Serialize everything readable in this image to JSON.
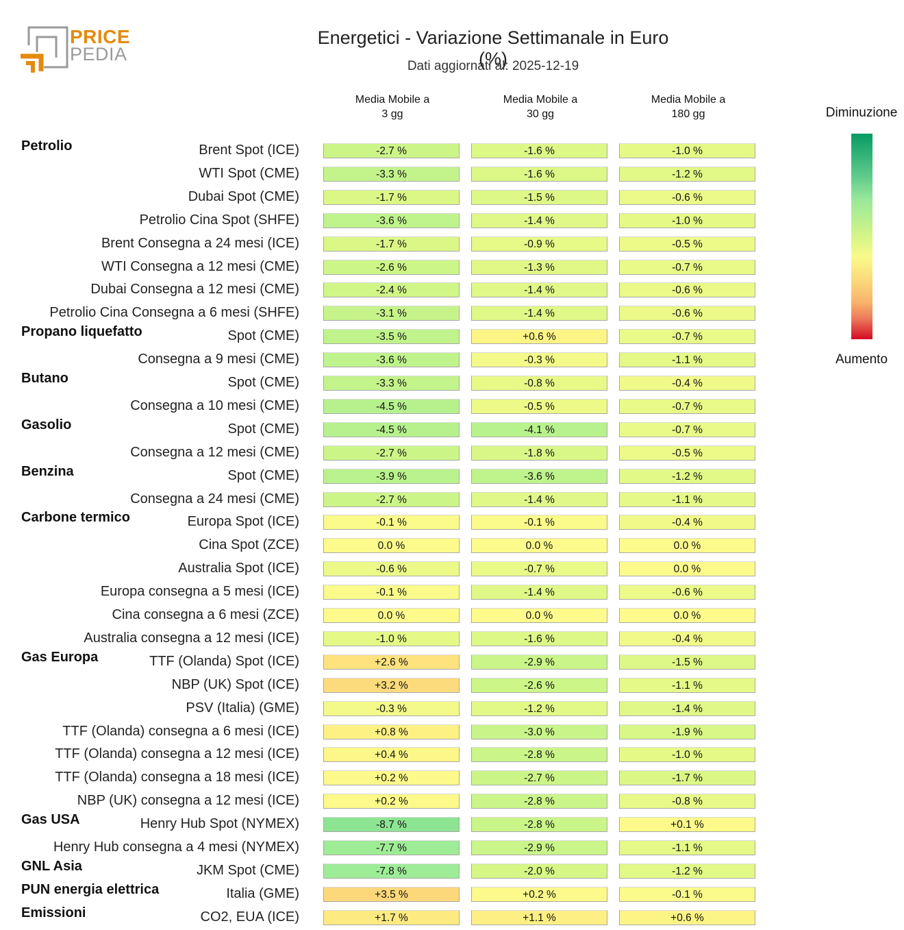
{
  "logo": {
    "line1": "PRICE",
    "line2": "PEDIA"
  },
  "header": {
    "title": "Energetici - Variazione Settimanale in Euro (%)",
    "subtitle": "Dati aggiornati al: 2025-12-19"
  },
  "legend": {
    "top_label": "Diminuzione",
    "bottom_label": "Aumento"
  },
  "colors": {
    "brand_orange": "#e58a0e",
    "brand_gray": "#9a9a9a",
    "scale_decrease": "#079b63",
    "scale_neutral": "#f9fa8a",
    "scale_increase": "#d30b24"
  },
  "chart_data": {
    "type": "heatmap",
    "title": "Energetici - Variazione Settimanale in Euro (%)",
    "subtitle": "Dati aggiornati al: 2025-12-19",
    "columns": [
      "Media Mobile a\n3 gg",
      "Media Mobile a\n30 gg",
      "Media Mobile a\n180 gg"
    ],
    "column_labels": [
      {
        "line1": "Media Mobile a",
        "line2": "3 gg"
      },
      {
        "line1": "Media Mobile a",
        "line2": "30 gg"
      },
      {
        "line1": "Media Mobile a",
        "line2": "180 gg"
      }
    ],
    "unit": "%",
    "color_scale": {
      "low_label": "Diminuzione",
      "high_label": "Aumento",
      "low_color": "#079b63",
      "mid_color": "#f9fa8a",
      "high_color": "#d30b24"
    },
    "rows": [
      {
        "group": "Petrolio",
        "label": "Brent Spot (ICE)",
        "values": [
          -2.7,
          -1.6,
          -1.0
        ]
      },
      {
        "group": "",
        "label": "WTI Spot (CME)",
        "values": [
          -3.3,
          -1.6,
          -1.2
        ]
      },
      {
        "group": "",
        "label": "Dubai Spot (CME)",
        "values": [
          -1.7,
          -1.5,
          -0.6
        ]
      },
      {
        "group": "",
        "label": "Petrolio Cina Spot (SHFE)",
        "values": [
          -3.6,
          -1.4,
          -1.0
        ]
      },
      {
        "group": "",
        "label": "Brent Consegna a 24 mesi (ICE)",
        "values": [
          -1.7,
          -0.9,
          -0.5
        ]
      },
      {
        "group": "",
        "label": "WTI Consegna a 12 mesi (CME)",
        "values": [
          -2.6,
          -1.3,
          -0.7
        ]
      },
      {
        "group": "",
        "label": "Dubai Consegna a 12 mesi (CME)",
        "values": [
          -2.4,
          -1.4,
          -0.6
        ]
      },
      {
        "group": "",
        "label": "Petrolio Cina Consegna a 6 mesi (SHFE)",
        "values": [
          -3.1,
          -1.4,
          -0.6
        ]
      },
      {
        "group": "Propano liquefatto",
        "label": "Spot (CME)",
        "values": [
          -3.5,
          0.6,
          -0.7
        ]
      },
      {
        "group": "",
        "label": "Consegna a 9 mesi (CME)",
        "values": [
          -3.6,
          -0.3,
          -1.1
        ]
      },
      {
        "group": "Butano",
        "label": "Spot (CME)",
        "values": [
          -3.3,
          -0.8,
          -0.4
        ]
      },
      {
        "group": "",
        "label": "Consegna a 10 mesi (CME)",
        "values": [
          -4.5,
          -0.5,
          -0.7
        ]
      },
      {
        "group": "Gasolio",
        "label": "Spot (CME)",
        "values": [
          -4.5,
          -4.1,
          -0.7
        ]
      },
      {
        "group": "",
        "label": "Consegna a 12 mesi (CME)",
        "values": [
          -2.7,
          -1.8,
          -0.5
        ]
      },
      {
        "group": "Benzina",
        "label": "Spot (CME)",
        "values": [
          -3.9,
          -3.6,
          -1.2
        ]
      },
      {
        "group": "",
        "label": "Consegna a 24 mesi (CME)",
        "values": [
          -2.7,
          -1.4,
          -1.1
        ]
      },
      {
        "group": "Carbone termico",
        "label": "Europa Spot (ICE)",
        "values": [
          -0.1,
          -0.1,
          -0.4
        ]
      },
      {
        "group": "",
        "label": "Cina Spot (ZCE)",
        "values": [
          0.0,
          0.0,
          0.0
        ]
      },
      {
        "group": "",
        "label": "Australia Spot (ICE)",
        "values": [
          -0.6,
          -0.7,
          0.0
        ]
      },
      {
        "group": "",
        "label": "Europa consegna a 5 mesi (ICE)",
        "values": [
          -0.1,
          -1.4,
          -0.6
        ]
      },
      {
        "group": "",
        "label": "Cina consegna a 6 mesi (ZCE)",
        "values": [
          0.0,
          0.0,
          0.0
        ]
      },
      {
        "group": "",
        "label": "Australia consegna a 12 mesi (ICE)",
        "values": [
          -1.0,
          -1.6,
          -0.4
        ]
      },
      {
        "group": "Gas Europa",
        "label": "TTF (Olanda) Spot (ICE)",
        "values": [
          2.6,
          -2.9,
          -1.5
        ]
      },
      {
        "group": "",
        "label": "NBP (UK) Spot (ICE)",
        "values": [
          3.2,
          -2.6,
          -1.1
        ]
      },
      {
        "group": "",
        "label": "PSV (Italia) (GME)",
        "values": [
          -0.3,
          -1.2,
          -1.4
        ]
      },
      {
        "group": "",
        "label": "TTF (Olanda) consegna a 6 mesi (ICE)",
        "values": [
          0.8,
          -3.0,
          -1.9
        ]
      },
      {
        "group": "",
        "label": "TTF (Olanda) consegna a 12 mesi (ICE)",
        "values": [
          0.4,
          -2.8,
          -1.0
        ]
      },
      {
        "group": "",
        "label": "TTF (Olanda) consegna a 18 mesi (ICE)",
        "values": [
          0.2,
          -2.7,
          -1.7
        ]
      },
      {
        "group": "",
        "label": "NBP (UK) consegna a 12 mesi (ICE)",
        "values": [
          0.2,
          -2.8,
          -0.8
        ]
      },
      {
        "group": "Gas USA",
        "label": "Henry Hub Spot (NYMEX)",
        "values": [
          -8.7,
          -2.8,
          0.1
        ]
      },
      {
        "group": "",
        "label": "Henry Hub consegna a 4 mesi (NYMEX)",
        "values": [
          -7.7,
          -2.9,
          -1.1
        ]
      },
      {
        "group": "GNL Asia",
        "label": "JKM Spot (CME)",
        "values": [
          -7.8,
          -2.0,
          -1.2
        ]
      },
      {
        "group": "PUN energia elettrica",
        "label": "Italia (GME)",
        "values": [
          3.5,
          0.2,
          -0.1
        ]
      },
      {
        "group": "Emissioni",
        "label": "CO2, EUA (ICE)",
        "values": [
          1.7,
          1.1,
          0.6
        ]
      }
    ],
    "cell_text": [
      [
        "-2.7 %",
        "-1.6 %",
        "-1.0 %"
      ],
      [
        "-3.3 %",
        "-1.6 %",
        "-1.2 %"
      ],
      [
        "-1.7 %",
        "-1.5 %",
        "-0.6 %"
      ],
      [
        "-3.6 %",
        "-1.4 %",
        "-1.0 %"
      ],
      [
        "-1.7 %",
        "-0.9 %",
        "-0.5 %"
      ],
      [
        "-2.6 %",
        "-1.3 %",
        "-0.7 %"
      ],
      [
        "-2.4 %",
        "-1.4 %",
        "-0.6 %"
      ],
      [
        "-3.1 %",
        "-1.4 %",
        "-0.6 %"
      ],
      [
        "-3.5 %",
        "+0.6 %",
        "-0.7 %"
      ],
      [
        "-3.6 %",
        "-0.3 %",
        "-1.1 %"
      ],
      [
        "-3.3 %",
        "-0.8 %",
        "-0.4 %"
      ],
      [
        "-4.5 %",
        "-0.5 %",
        "-0.7 %"
      ],
      [
        "-4.5 %",
        "-4.1 %",
        "-0.7 %"
      ],
      [
        "-2.7 %",
        "-1.8 %",
        "-0.5 %"
      ],
      [
        "-3.9 %",
        "-3.6 %",
        "-1.2 %"
      ],
      [
        "-2.7 %",
        "-1.4 %",
        "-1.1 %"
      ],
      [
        "-0.1 %",
        "-0.1 %",
        "-0.4 %"
      ],
      [
        "0.0 %",
        "0.0 %",
        "0.0 %"
      ],
      [
        "-0.6 %",
        "-0.7 %",
        "0.0 %"
      ],
      [
        "-0.1 %",
        "-1.4 %",
        "-0.6 %"
      ],
      [
        "0.0 %",
        "0.0 %",
        "0.0 %"
      ],
      [
        "-1.0 %",
        "-1.6 %",
        "-0.4 %"
      ],
      [
        "+2.6 %",
        "-2.9 %",
        "-1.5 %"
      ],
      [
        "+3.2 %",
        "-2.6 %",
        "-1.1 %"
      ],
      [
        "-0.3 %",
        "-1.2 %",
        "-1.4 %"
      ],
      [
        "+0.8 %",
        "-3.0 %",
        "-1.9 %"
      ],
      [
        "+0.4 %",
        "-2.8 %",
        "-1.0 %"
      ],
      [
        "+0.2 %",
        "-2.7 %",
        "-1.7 %"
      ],
      [
        "+0.2 %",
        "-2.8 %",
        "-0.8 %"
      ],
      [
        "-8.7 %",
        "-2.8 %",
        "+0.1 %"
      ],
      [
        "-7.7 %",
        "-2.9 %",
        "-1.1 %"
      ],
      [
        "-7.8 %",
        "-2.0 %",
        "-1.2 %"
      ],
      [
        "+3.5 %",
        "+0.2 %",
        "-0.1 %"
      ],
      [
        "+1.7 %",
        "+1.1 %",
        "+0.6 %"
      ]
    ]
  }
}
